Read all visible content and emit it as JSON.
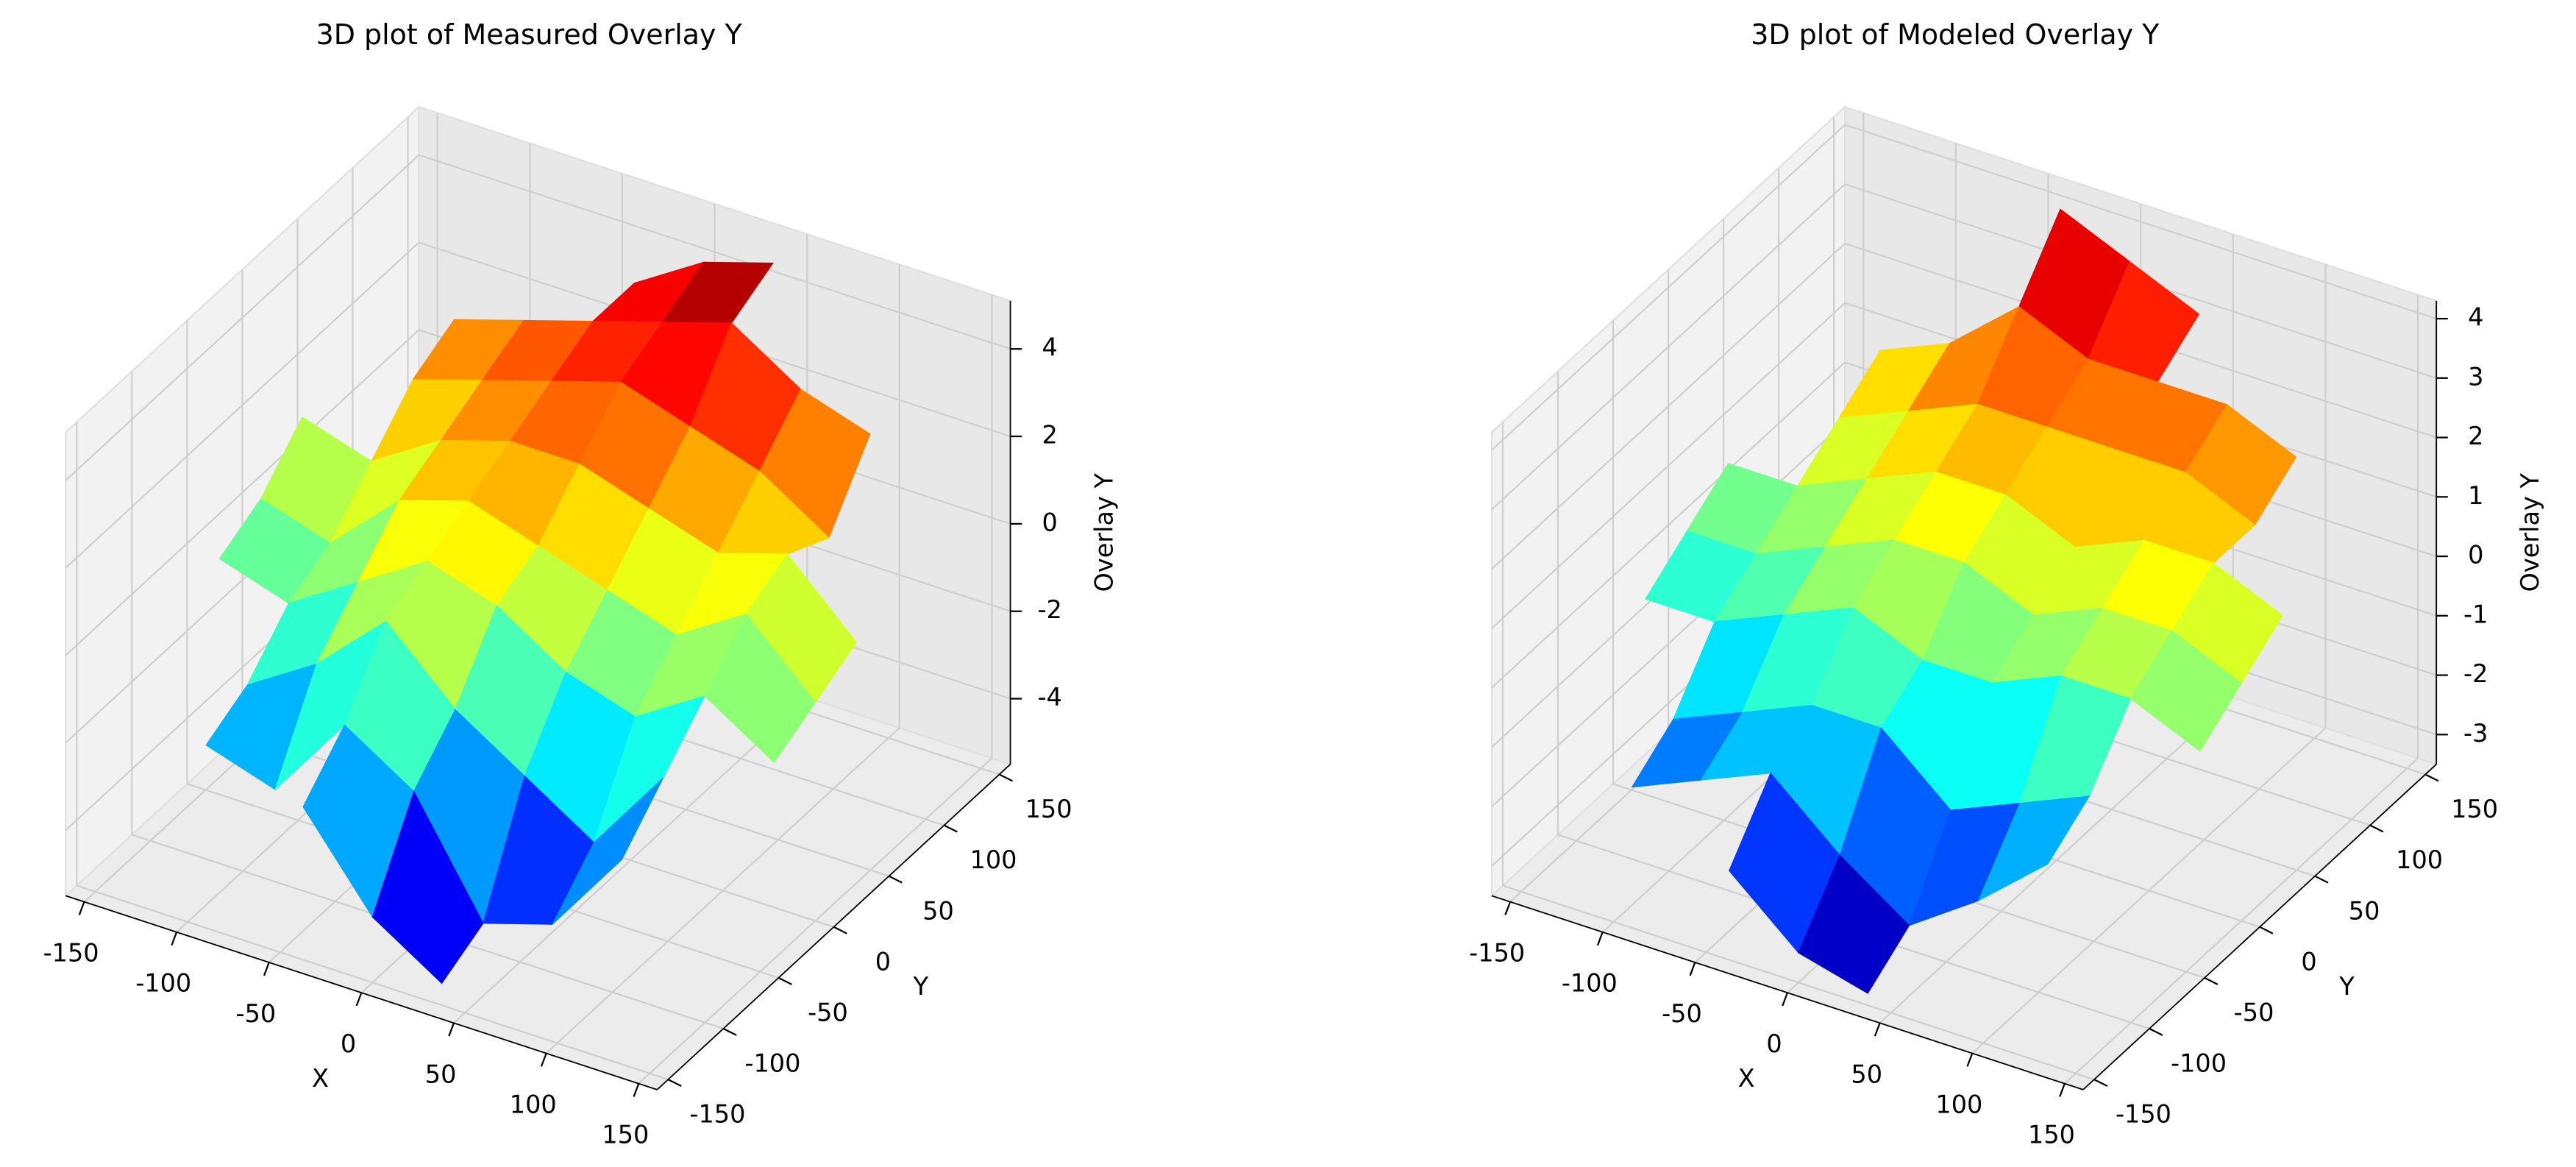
{
  "chart_data": [
    {
      "type": "surface",
      "title": "3D plot of Measured Overlay Y",
      "xlabel": "X",
      "ylabel": "Y",
      "zlabel": "Overlay Y",
      "colormap": "jet",
      "grid": true,
      "xlim": [
        -160,
        160
      ],
      "ylim": [
        -160,
        160
      ],
      "zlim": [
        -5.5,
        5.1
      ],
      "xticks": [
        -150,
        -100,
        -50,
        0,
        50,
        100,
        150
      ],
      "yticks": [
        -150,
        -100,
        -50,
        0,
        50,
        100,
        150
      ],
      "zticks": [
        -4,
        -2,
        0,
        2,
        4
      ],
      "x": [
        -150,
        -112.5,
        -75,
        -37.5,
        0,
        37.5,
        75,
        112.5,
        150
      ],
      "y": [
        -150,
        -112.5,
        -75,
        -37.5,
        0,
        37.5,
        75,
        112.5,
        150
      ],
      "z": [
        [
          null,
          null,
          null,
          -2,
          -4,
          -5,
          null,
          null,
          null
        ],
        [
          null,
          -2.5,
          -3,
          -1,
          -2,
          -4.5,
          -4,
          -2,
          null
        ],
        [
          null,
          -2,
          -1,
          0.5,
          -1,
          -2,
          -3,
          -1,
          null
        ],
        [
          -0.5,
          -1,
          0,
          1,
          0.5,
          -0.5,
          -1,
          0,
          -1
        ],
        [
          0,
          -0.5,
          1,
          1.5,
          1,
          0.5,
          0,
          1,
          -0.5
        ],
        [
          1,
          0.5,
          1.5,
          2,
          2,
          1.5,
          1,
          1.5,
          0
        ],
        [
          null,
          1.5,
          2,
          2.5,
          3,
          2.5,
          2,
          1,
          null
        ],
        [
          null,
          2,
          2.5,
          3,
          3.5,
          4,
          3,
          2.5,
          null
        ],
        [
          null,
          null,
          null,
          3,
          4,
          4.5,
          null,
          null,
          null
        ]
      ]
    },
    {
      "type": "surface",
      "title": "3D plot of Modeled Overlay Y",
      "xlabel": "X",
      "ylabel": "Y",
      "zlabel": "Overlay Y",
      "colormap": "jet",
      "grid": true,
      "xlim": [
        -160,
        160
      ],
      "ylim": [
        -160,
        160
      ],
      "zlim": [
        -3.5,
        4.3
      ],
      "xticks": [
        -150,
        -100,
        -50,
        0,
        50,
        100,
        150
      ],
      "yticks": [
        -150,
        -100,
        -50,
        0,
        50,
        100,
        150
      ],
      "zticks": [
        -3,
        -2,
        -1,
        0,
        1,
        2,
        3,
        4
      ],
      "x": [
        -150,
        -112.5,
        -75,
        -37.5,
        0,
        37.5,
        75,
        112.5,
        150
      ],
      "y": [
        -150,
        -112.5,
        -75,
        -37.5,
        0,
        37.5,
        75,
        112.5,
        150
      ],
      "z": [
        [
          null,
          null,
          null,
          -2,
          -3,
          -3.3,
          null,
          null,
          null
        ],
        [
          null,
          -2,
          -1.5,
          -1,
          -2,
          -2.8,
          -2,
          -1,
          null
        ],
        [
          null,
          -1.5,
          -1,
          -0.5,
          -0.5,
          -1.5,
          -1,
          -0.5,
          null
        ],
        [
          -0.5,
          -0.5,
          0,
          0.5,
          0,
          0,
          0.5,
          0.5,
          0
        ],
        [
          0,
          0,
          0.5,
          1,
          1,
          0.5,
          1,
          1,
          0.5
        ],
        [
          0.5,
          0.5,
          1,
          1.5,
          1.5,
          1,
          1.5,
          1.5,
          1
        ],
        [
          null,
          1,
          1.5,
          2,
          2,
          2,
          2,
          1.5,
          null
        ],
        [
          null,
          1.5,
          2,
          3,
          2.5,
          2.5,
          2.5,
          2,
          null
        ],
        [
          null,
          null,
          null,
          4,
          3.5,
          3,
          null,
          null,
          null
        ]
      ]
    }
  ]
}
